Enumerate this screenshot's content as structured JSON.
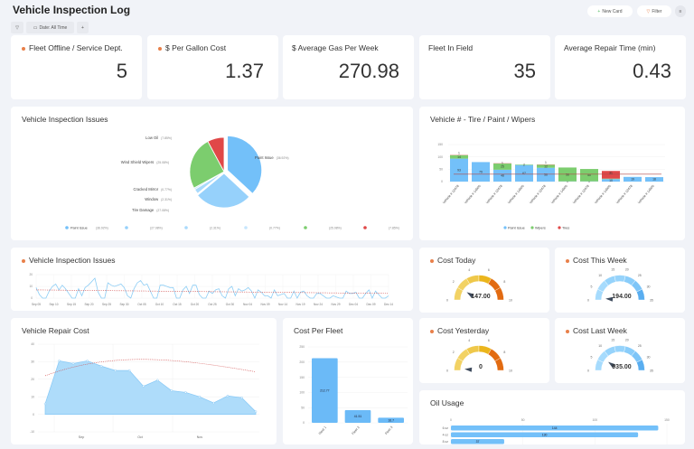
{
  "header": {
    "title": "Vehicle Inspection Log",
    "new_card": "New Card",
    "filter": "Filter",
    "date_filter": "Date: All Time",
    "add": "+"
  },
  "colors": {
    "accent": "#e8804a",
    "blue": "#73c0f9",
    "green": "#7ccd6e",
    "red": "#e04848",
    "yellow": "#f2d264",
    "orange": "#e26b12"
  },
  "kpis": [
    {
      "title": "Fleet Offline / Service Dept.",
      "value": "5",
      "dot": true
    },
    {
      "title": "$ Per Gallon Cost",
      "value": "1.37",
      "dot": true
    },
    {
      "title": "$ Average Gas Per Week",
      "value": "270.98",
      "dot": false
    },
    {
      "title": "Fleet In Field",
      "value": "35",
      "dot": false
    },
    {
      "title": "Average Repair Time (min)",
      "value": "0.43",
      "dot": false
    }
  ],
  "pie": {
    "title": "Vehicle Inspection Issues",
    "slices": [
      {
        "name": "Paint Issue",
        "pct": "36.92%",
        "value": 36.92,
        "color": "#73c0f9"
      },
      {
        "name": "Tire Damage",
        "pct": "27.08%",
        "value": 27.08,
        "color": "#96d1fb"
      },
      {
        "name": "Window",
        "pct": "2.31%",
        "value": 2.31,
        "color": "#a9dafc"
      },
      {
        "name": "Cracked Mirror",
        "pct": "0.77%",
        "value": 0.77,
        "color": "#c6e6fd"
      },
      {
        "name": "Wind Shield Wipers",
        "pct": "25.08%",
        "value": 25.08,
        "color": "#7ccd6e"
      },
      {
        "name": "Low Oil",
        "pct": "7.85%",
        "value": 7.85,
        "color": "#e04848"
      }
    ]
  },
  "stacked": {
    "title": "Vehicle # - Tire / Paint / Wipers",
    "yticks": [
      "0",
      "50",
      "100",
      "150"
    ],
    "ymax": 150,
    "trend": 30,
    "categories": [
      "Vehicle # 12478",
      "Vehicle # 14500",
      "Vehicle # 12478",
      "Vehicle # 14500",
      "Vehicle # 12478",
      "Vehicle # 14500",
      "Vehicle # 12478",
      "Vehicle # 14500",
      "Vehicle # 12478",
      "Vehicle # 14500"
    ],
    "series": [
      {
        "name": "Paint Issue",
        "color": "#73c0f9",
        "values": [
          93,
          79,
          48,
          67,
          56,
          1,
          1,
          10,
          19,
          18
        ]
      },
      {
        "name": "Wipers",
        "color": "#7ccd6e",
        "values": [
          14,
          0,
          25,
          2,
          12,
          56,
          50,
          2,
          0,
          0
        ]
      },
      {
        "name": "Tires",
        "color": "#e04848",
        "values": [
          1,
          0,
          1,
          0,
          1,
          0,
          0,
          31,
          0,
          0
        ]
      }
    ]
  },
  "line": {
    "title": "Vehicle Inspection Issues",
    "yticks": [
      "0",
      "10",
      "20"
    ],
    "ymax": 20,
    "xticks": [
      "Sep 05",
      "Sep 10",
      "Sep 15",
      "Sep 20",
      "Sep 25",
      "Sep 30",
      "Oct 05",
      "Oct 10",
      "Oct 15",
      "Oct 20",
      "Oct 25",
      "Oct 30",
      "Nov 04",
      "Nov 09",
      "Nov 14",
      "Nov 19",
      "Nov 24",
      "Nov 29",
      "Dec 04",
      "Dec 09",
      "Dec 14"
    ],
    "values": [
      9,
      3,
      0,
      0,
      6,
      10,
      12,
      7,
      11,
      8,
      4,
      0,
      0,
      8,
      2,
      9,
      11,
      14,
      17,
      5,
      0,
      0,
      13,
      11,
      10,
      11,
      12,
      9,
      2,
      0,
      8,
      13,
      15,
      11,
      12,
      6,
      0,
      0,
      11,
      11,
      10,
      9,
      9,
      0,
      0,
      7,
      10,
      4,
      11,
      11,
      3,
      0,
      0,
      6,
      4,
      7,
      8,
      2,
      0,
      8,
      10,
      2,
      8,
      6,
      7,
      9,
      6,
      0,
      7,
      5,
      2,
      2,
      0,
      7,
      2,
      3,
      4,
      0,
      0,
      6,
      0,
      5,
      6,
      2,
      0,
      0,
      4,
      4,
      2,
      0,
      0,
      2,
      1,
      0,
      0,
      6,
      4,
      4,
      5,
      0,
      0,
      4,
      7,
      0,
      6,
      3,
      0,
      0,
      2
    ],
    "trend": [
      7,
      4
    ]
  },
  "gauges": [
    {
      "title": "Cost Today",
      "value": "147.00",
      "ticks": [
        "0",
        "2",
        "4",
        "6",
        "8",
        "10"
      ],
      "max": 10,
      "needle": 1.8,
      "scheme": "warm"
    },
    {
      "title": "Cost This Week",
      "value": "194.00",
      "ticks": [
        "0",
        "5",
        "10",
        "15",
        "20",
        "25",
        "30",
        "35"
      ],
      "max": 35,
      "needle": 1,
      "scheme": "cool"
    },
    {
      "title": "Cost Yesterday",
      "value": "0",
      "ticks": [
        "0",
        "2",
        "4",
        "6",
        "8",
        "10"
      ],
      "max": 10,
      "needle": 0.3,
      "scheme": "warm"
    },
    {
      "title": "Cost Last Week",
      "value": "935.00",
      "ticks": [
        "0",
        "5",
        "10",
        "15",
        "20",
        "25",
        "30",
        "35"
      ],
      "max": 35,
      "needle": 7,
      "scheme": "cool"
    }
  ],
  "area": {
    "title": "Vehicle Repair Cost",
    "yticks": [
      "-10",
      "0",
      "10",
      "20",
      "30",
      "40"
    ],
    "ymin": -10,
    "ymax": 40,
    "xticks": [
      "Sep",
      "Oct",
      "Nov"
    ],
    "values": [
      6,
      30.5,
      29,
      30.5,
      27.5,
      25,
      25,
      16,
      19.5,
      13.5,
      12.5,
      10,
      6.5,
      10.5,
      9.5,
      1.5
    ]
  },
  "fleet": {
    "title": "Cost Per Fleet",
    "yticks": [
      "0",
      "50",
      "100",
      "150",
      "200",
      "250"
    ],
    "ymax": 250,
    "categories": [
      "Fleet 1",
      "Fleet 2",
      "Fleet 3"
    ],
    "values": [
      212.77,
      41.51,
      16.7
    ],
    "labels": [
      "212.77",
      "41.51",
      "16.7"
    ]
  },
  "oil": {
    "title": "Oil Usage",
    "xticks": [
      "0",
      "50",
      "100",
      "150"
    ],
    "xmax": 150,
    "categories": [
      "6 oz",
      "4 oz",
      "8 oz"
    ],
    "values": [
      144,
      130,
      37
    ],
    "labels": [
      "144",
      "130",
      "37"
    ]
  }
}
